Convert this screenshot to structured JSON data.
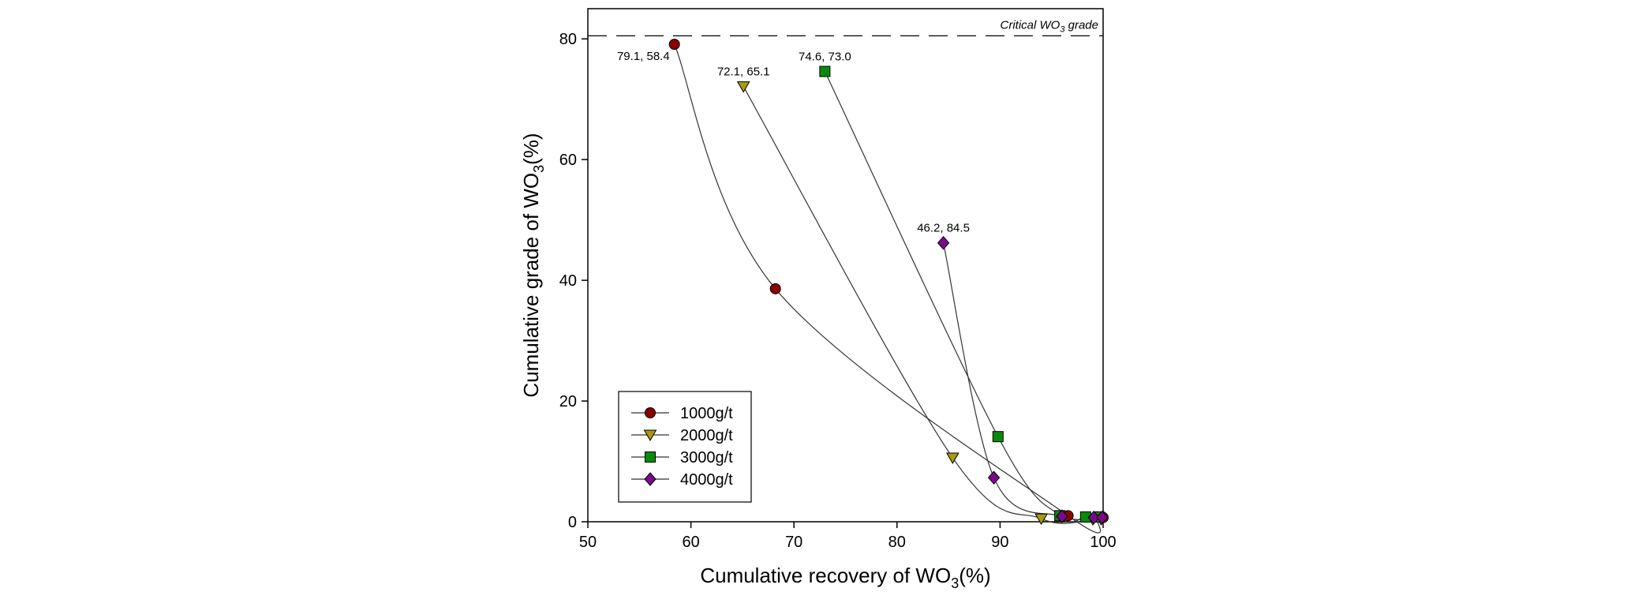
{
  "chart_data": {
    "type": "line",
    "xlabel": "Cumulative recovery of WO3(%)",
    "ylabel": "Cumulative grade of WO3(%)",
    "xlim": [
      50,
      100
    ],
    "ylim": [
      0,
      85
    ],
    "xticks": [
      50,
      60,
      70,
      80,
      90,
      100
    ],
    "yticks": [
      0,
      20,
      40,
      60,
      80
    ],
    "grid": false,
    "legend_position": "bottom-left",
    "reference_line": {
      "y": 80.5,
      "label": "Critical WO3 grade"
    },
    "series": [
      {
        "name": "1000g/t",
        "marker": "circle",
        "color": "#8B0000",
        "x": [
          58.4,
          68.2,
          96.6,
          99.4,
          100.0
        ],
        "y": [
          79.1,
          38.6,
          1.0,
          0.8,
          0.7
        ]
      },
      {
        "name": "2000g/t",
        "marker": "triangle-down",
        "color": "#A89A10",
        "x": [
          65.1,
          85.4,
          94.0,
          99.0,
          99.8
        ],
        "y": [
          72.1,
          10.6,
          0.5,
          0.4,
          0.4
        ]
      },
      {
        "name": "3000g/t",
        "marker": "square",
        "color": "#0A8A0A",
        "x": [
          73.0,
          89.8,
          95.8,
          98.3,
          99.6
        ],
        "y": [
          74.6,
          14.1,
          1.0,
          0.8,
          0.8
        ]
      },
      {
        "name": "4000g/t",
        "marker": "diamond",
        "color": "#7A0A8A",
        "x": [
          84.5,
          89.4,
          96.0,
          99.1,
          99.9
        ],
        "y": [
          46.2,
          7.3,
          0.9,
          0.7,
          0.7
        ]
      }
    ],
    "annotations": [
      {
        "text": "79.1, 58.4",
        "x": 58.4,
        "y": 79.1,
        "anchor": "left-below"
      },
      {
        "text": "72.1, 65.1",
        "x": 65.1,
        "y": 72.1,
        "anchor": "above"
      },
      {
        "text": "74.6, 73.0",
        "x": 73.0,
        "y": 74.6,
        "anchor": "above"
      },
      {
        "text": "46.2, 84.5",
        "x": 84.5,
        "y": 46.2,
        "anchor": "above"
      }
    ]
  }
}
